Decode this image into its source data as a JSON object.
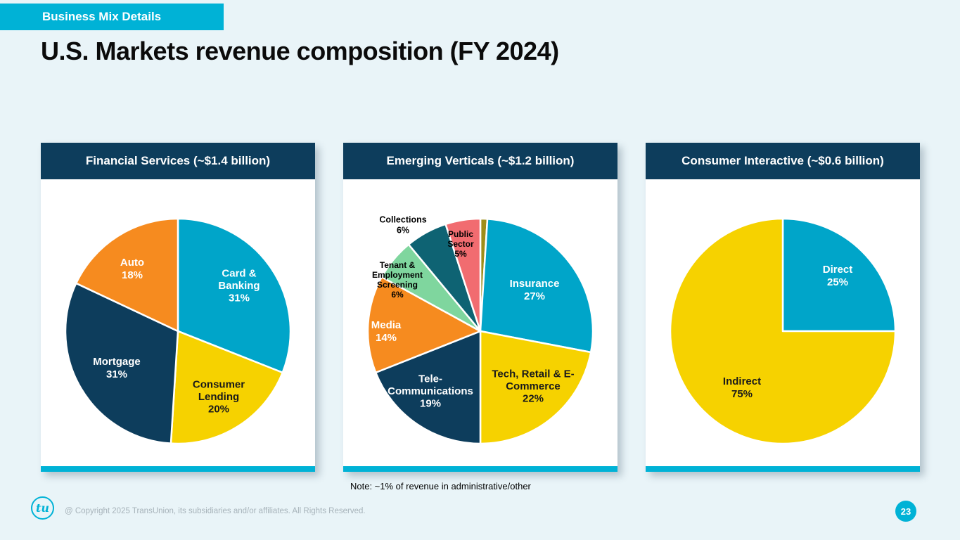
{
  "badge": {
    "label": "Business Mix Details"
  },
  "title": "U.S. Markets revenue composition (FY 2024)",
  "note": "Note: ~1% of revenue in administrative/other",
  "footer": {
    "logo_text": "tu",
    "copyright": "@ Copyright 2025 TransUnion, its subsidiaries and/or affiliates.  All Rights Reserved.",
    "page_number": "23"
  },
  "colors": {
    "accent_cyan": "#00B2D6",
    "header_navy": "#0D3D5C",
    "background": "#E9F4F8",
    "slice_teal": "#00A5C9",
    "slice_yellow": "#F6D200",
    "slice_navy": "#0D3D5C",
    "slice_orange": "#F68B1F",
    "slice_green": "#7FD69E",
    "slice_dark_teal": "#0E6373",
    "slice_pink": "#F16C70",
    "slice_olive": "#9E8E1A"
  },
  "chart_data": [
    {
      "type": "pie",
      "title": "Financial Services (~$1.4 billion)",
      "total": "~$1.4 billion",
      "unit": "%",
      "slices": [
        {
          "name": "Card & Banking",
          "value": 31,
          "color": "#00A5C9",
          "text_color": "#FFFFFF",
          "font_size": 15,
          "label": [
            "Card &",
            "Banking",
            "31%"
          ],
          "label_pos": [
            282,
            151
          ]
        },
        {
          "name": "Consumer Lending",
          "value": 20,
          "color": "#F6D200",
          "text_color": "#1A1A1A",
          "font_size": 15,
          "label": [
            "Consumer",
            "Lending",
            "20%"
          ],
          "label_pos": [
            253,
            309
          ]
        },
        {
          "name": "Mortgage",
          "value": 31,
          "color": "#0D3D5C",
          "text_color": "#FFFFFF",
          "font_size": 15,
          "label": [
            "Mortgage",
            "31%"
          ],
          "label_pos": [
            108,
            268
          ]
        },
        {
          "name": "Auto",
          "value": 18,
          "color": "#F68B1F",
          "text_color": "#FFFFFF",
          "font_size": 15,
          "label": [
            "Auto",
            "18%"
          ],
          "label_pos": [
            130,
            127
          ]
        }
      ]
    },
    {
      "type": "pie",
      "title": "Emerging Verticals (~$1.2 billion)",
      "total": "~$1.2 billion",
      "unit": "%",
      "slices": [
        {
          "name": "Administrative/other",
          "value": 1,
          "color": "#9E8E1A",
          "text_color": "#000000",
          "font_size": 12,
          "label": [],
          "label_pos": [
            195,
            20
          ]
        },
        {
          "name": "Insurance",
          "value": 27,
          "color": "#00A5C9",
          "text_color": "#FFFFFF",
          "font_size": 15,
          "label": [
            "Insurance",
            "27%"
          ],
          "label_pos": [
            272,
            157
          ]
        },
        {
          "name": "Tech, Retail & E-Commerce",
          "value": 22,
          "color": "#F6D200",
          "text_color": "#1A1A1A",
          "font_size": 15,
          "label": [
            "Tech, Retail & E-",
            "Commerce",
            "22%"
          ],
          "label_pos": [
            270,
            294
          ]
        },
        {
          "name": "Tele-Communications",
          "value": 19,
          "color": "#0D3D5C",
          "text_color": "#FFFFFF",
          "font_size": 15,
          "label": [
            "Tele-",
            "Communications",
            "19%"
          ],
          "label_pos": [
            124,
            301
          ]
        },
        {
          "name": "Media",
          "value": 14,
          "color": "#F68B1F",
          "text_color": "#FFFFFF",
          "font_size": 15,
          "label": [
            "Media",
            "14%"
          ],
          "label_pos": [
            61,
            216
          ]
        },
        {
          "name": "Tenant & Employment Screening",
          "value": 6,
          "color": "#7FD69E",
          "text_color": "#000000",
          "font_size": 12,
          "label": [
            "Tenant &",
            "Employment",
            "Screening",
            "6%"
          ],
          "label_pos": [
            77,
            143
          ]
        },
        {
          "name": "Collections",
          "value": 6,
          "color": "#0E6373",
          "text_color": "#000000",
          "font_size": 12.5,
          "label": [
            "Collections",
            "6%"
          ],
          "label_pos": [
            85,
            65
          ]
        },
        {
          "name": "Public Sector",
          "value": 5,
          "color": "#F16C70",
          "text_color": "#000000",
          "font_size": 12,
          "label": [
            "Public",
            "Sector",
            "5%"
          ],
          "label_pos": [
            167,
            92
          ]
        }
      ]
    },
    {
      "type": "pie",
      "title": "Consumer Interactive (~$0.6 billion)",
      "total": "~$0.6 billion",
      "unit": "%",
      "slices": [
        {
          "name": "Direct",
          "value": 25,
          "color": "#00A5C9",
          "text_color": "#FFFFFF",
          "font_size": 15,
          "label": [
            "Direct",
            "25%"
          ],
          "label_pos": [
            273,
            137
          ]
        },
        {
          "name": "Indirect",
          "value": 75,
          "color": "#F6D200",
          "text_color": "#1A1A1A",
          "font_size": 15,
          "label": [
            "Indirect",
            "75%"
          ],
          "label_pos": [
            137,
            296
          ]
        }
      ]
    }
  ]
}
